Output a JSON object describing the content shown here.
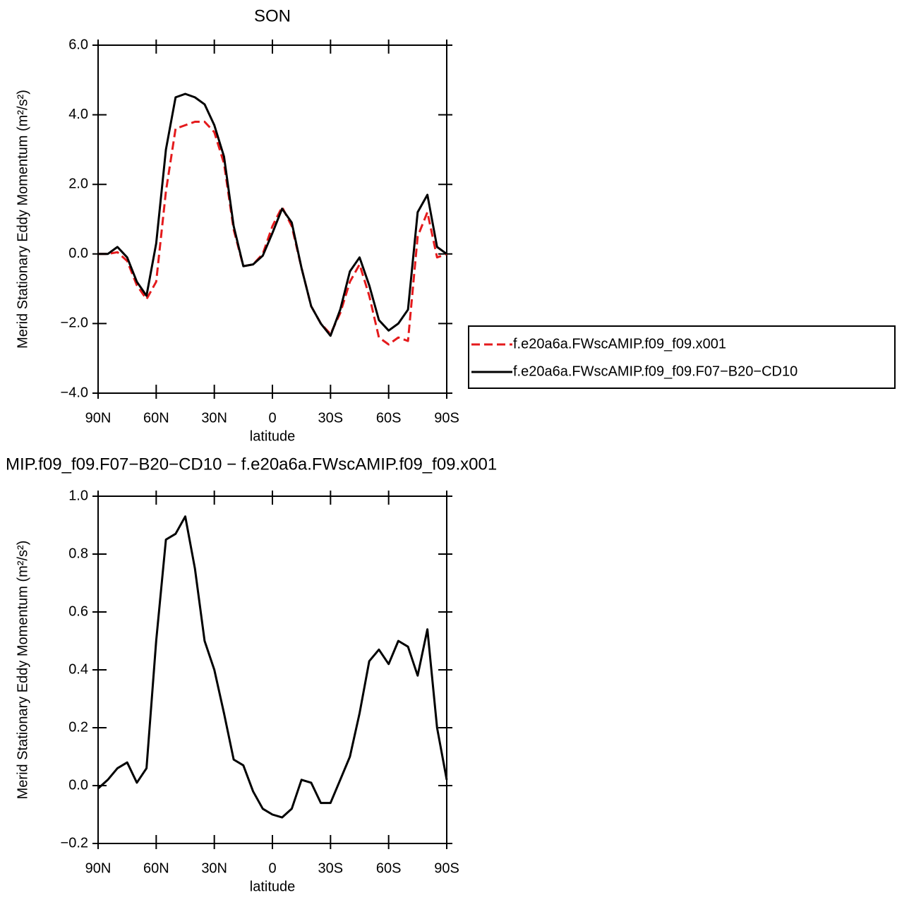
{
  "chart_data": [
    {
      "type": "line",
      "title": "SON",
      "x_label": "latitude",
      "y_label": "Merid Stationary Eddy Momentum (m²/s²)",
      "x": [
        90,
        85,
        80,
        75,
        70,
        65,
        60,
        55,
        50,
        45,
        40,
        35,
        30,
        25,
        20,
        15,
        10,
        5,
        0,
        -5,
        -10,
        -15,
        -20,
        -25,
        -30,
        -35,
        -40,
        -45,
        -50,
        -55,
        -60,
        -65,
        -70,
        -75,
        -80,
        -85,
        -90
      ],
      "series": [
        {
          "name": "f.e20a6a.FWscAMIP.f09_f09.x001",
          "color": "#e41a1c",
          "dash": true,
          "values": [
            0,
            0,
            0.05,
            -0.2,
            -0.9,
            -1.3,
            -0.8,
            1.8,
            3.6,
            3.7,
            3.8,
            3.8,
            3.5,
            2.6,
            0.7,
            -0.35,
            -0.3,
            0.0,
            0.8,
            1.35,
            0.8,
            -0.4,
            -1.5,
            -2.0,
            -2.3,
            -1.7,
            -0.8,
            -0.3,
            -1.2,
            -2.4,
            -2.6,
            -2.4,
            -2.5,
            0.5,
            1.2,
            -0.1,
            0.0
          ]
        },
        {
          "name": "f.e20a6a.FWscAMIP.f09_f09.F07−B20−CD10",
          "color": "#000000",
          "dash": false,
          "values": [
            0,
            0,
            0.2,
            -0.1,
            -0.8,
            -1.2,
            0.3,
            3.0,
            4.5,
            4.6,
            4.5,
            4.3,
            3.7,
            2.8,
            0.8,
            -0.35,
            -0.3,
            -0.05,
            0.6,
            1.3,
            0.9,
            -0.4,
            -1.5,
            -2.0,
            -2.35,
            -1.6,
            -0.5,
            -0.1,
            -0.9,
            -1.9,
            -2.2,
            -2.0,
            -1.6,
            1.2,
            1.7,
            0.2,
            0.0
          ]
        }
      ],
      "xlim": [
        90,
        -90
      ],
      "xticks": [
        {
          "value": 90,
          "label": "90N"
        },
        {
          "value": 60,
          "label": "60N"
        },
        {
          "value": 30,
          "label": "30N"
        },
        0,
        {
          "value": -30,
          "label": "30S"
        },
        {
          "value": -60,
          "label": "60S"
        },
        {
          "value": -90,
          "label": "90S"
        }
      ],
      "ylim": [
        -4,
        6
      ],
      "yticks": [
        {
          "value": -4,
          "label": "−4.0"
        },
        {
          "value": -2,
          "label": "−2.0"
        },
        {
          "value": 0,
          "label": "0.0"
        },
        {
          "value": 2,
          "label": "2.0"
        },
        {
          "value": 4,
          "label": "4.0"
        },
        {
          "value": 6,
          "label": "6.0"
        }
      ],
      "legend": "right"
    },
    {
      "type": "line",
      "title": "MIP.f09_f09.F07−B20−CD10 − f.e20a6a.FWscAMIP.f09_f09.x001",
      "x_label": "latitude",
      "y_label": "Merid Stationary Eddy Momentum (m²/s²)",
      "x": [
        90,
        85,
        80,
        75,
        70,
        65,
        60,
        55,
        50,
        45,
        40,
        35,
        30,
        25,
        20,
        15,
        10,
        5,
        0,
        -5,
        -10,
        -15,
        -20,
        -25,
        -30,
        -35,
        -40,
        -45,
        -50,
        -55,
        -60,
        -65,
        -70,
        -75,
        -80,
        -85,
        -90
      ],
      "series": [
        {
          "color": "#000000",
          "dash": false,
          "values": [
            -0.01,
            0.02,
            0.06,
            0.08,
            0.01,
            0.06,
            0.5,
            0.85,
            0.87,
            0.93,
            0.75,
            0.5,
            0.4,
            0.25,
            0.09,
            0.07,
            -0.02,
            -0.08,
            -0.1,
            -0.11,
            -0.08,
            0.02,
            0.01,
            -0.06,
            -0.06,
            0.02,
            0.1,
            0.25,
            0.43,
            0.47,
            0.42,
            0.5,
            0.48,
            0.38,
            0.54,
            0.2,
            0.02
          ]
        }
      ],
      "xlim": [
        90,
        -90
      ],
      "xticks": [
        {
          "value": 90,
          "label": "90N"
        },
        {
          "value": 60,
          "label": "60N"
        },
        {
          "value": 30,
          "label": "30N"
        },
        0,
        {
          "value": -30,
          "label": "30S"
        },
        {
          "value": -60,
          "label": "60S"
        },
        {
          "value": -90,
          "label": "90S"
        }
      ],
      "ylim": [
        -0.2,
        1.0
      ],
      "yticks": [
        {
          "value": -0.2,
          "label": "−0.2"
        },
        {
          "value": 0,
          "label": "0.0"
        },
        {
          "value": 0.2,
          "label": "0.2"
        },
        {
          "value": 0.4,
          "label": "0.4"
        },
        {
          "value": 0.6,
          "label": "0.6"
        },
        {
          "value": 0.8,
          "label": "0.8"
        },
        {
          "value": 1.0,
          "label": "1.0"
        }
      ]
    }
  ]
}
